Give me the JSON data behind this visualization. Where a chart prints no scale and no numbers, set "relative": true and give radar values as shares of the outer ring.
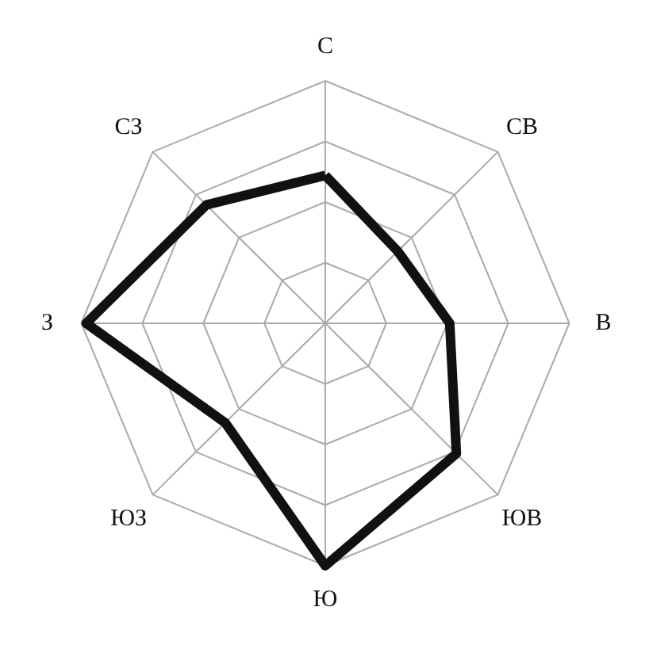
{
  "chart_data": {
    "type": "radar",
    "relative": true,
    "grid": true,
    "marker": "none",
    "line_style": "solid",
    "categories": [
      "С",
      "СВ",
      "В",
      "ЮВ",
      "Ю",
      "ЮЗ",
      "З",
      "СЗ"
    ],
    "series": [
      {
        "color": "#111111",
        "values": [
          0.61,
          0.42,
          0.51,
          0.76,
          1.0,
          0.58,
          0.98,
          0.69
        ]
      }
    ]
  }
}
